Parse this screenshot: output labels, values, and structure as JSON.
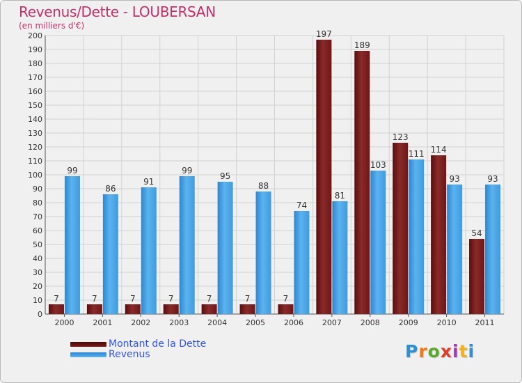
{
  "chart_data": {
    "type": "bar",
    "title": "Revenus/Dette - LOUBERSAN",
    "subtitle": "(en milliers d'€)",
    "categories": [
      "2000",
      "2001",
      "2002",
      "2003",
      "2004",
      "2005",
      "2006",
      "2007",
      "2008",
      "2009",
      "2010",
      "2011"
    ],
    "series": [
      {
        "name": "Montant de la Dette",
        "color": "#7a1c1c",
        "values": [
          7,
          7,
          7,
          7,
          7,
          7,
          7,
          197,
          189,
          123,
          114,
          54
        ]
      },
      {
        "name": "Revenus",
        "color": "#3d98dd",
        "values": [
          99,
          86,
          91,
          99,
          95,
          88,
          74,
          81,
          103,
          111,
          93,
          93
        ]
      }
    ],
    "ylim": [
      0,
      200
    ],
    "ytick_step": 10,
    "grid": true,
    "legend_position": "bottom-left"
  },
  "logo": {
    "text": "Proxiti"
  }
}
